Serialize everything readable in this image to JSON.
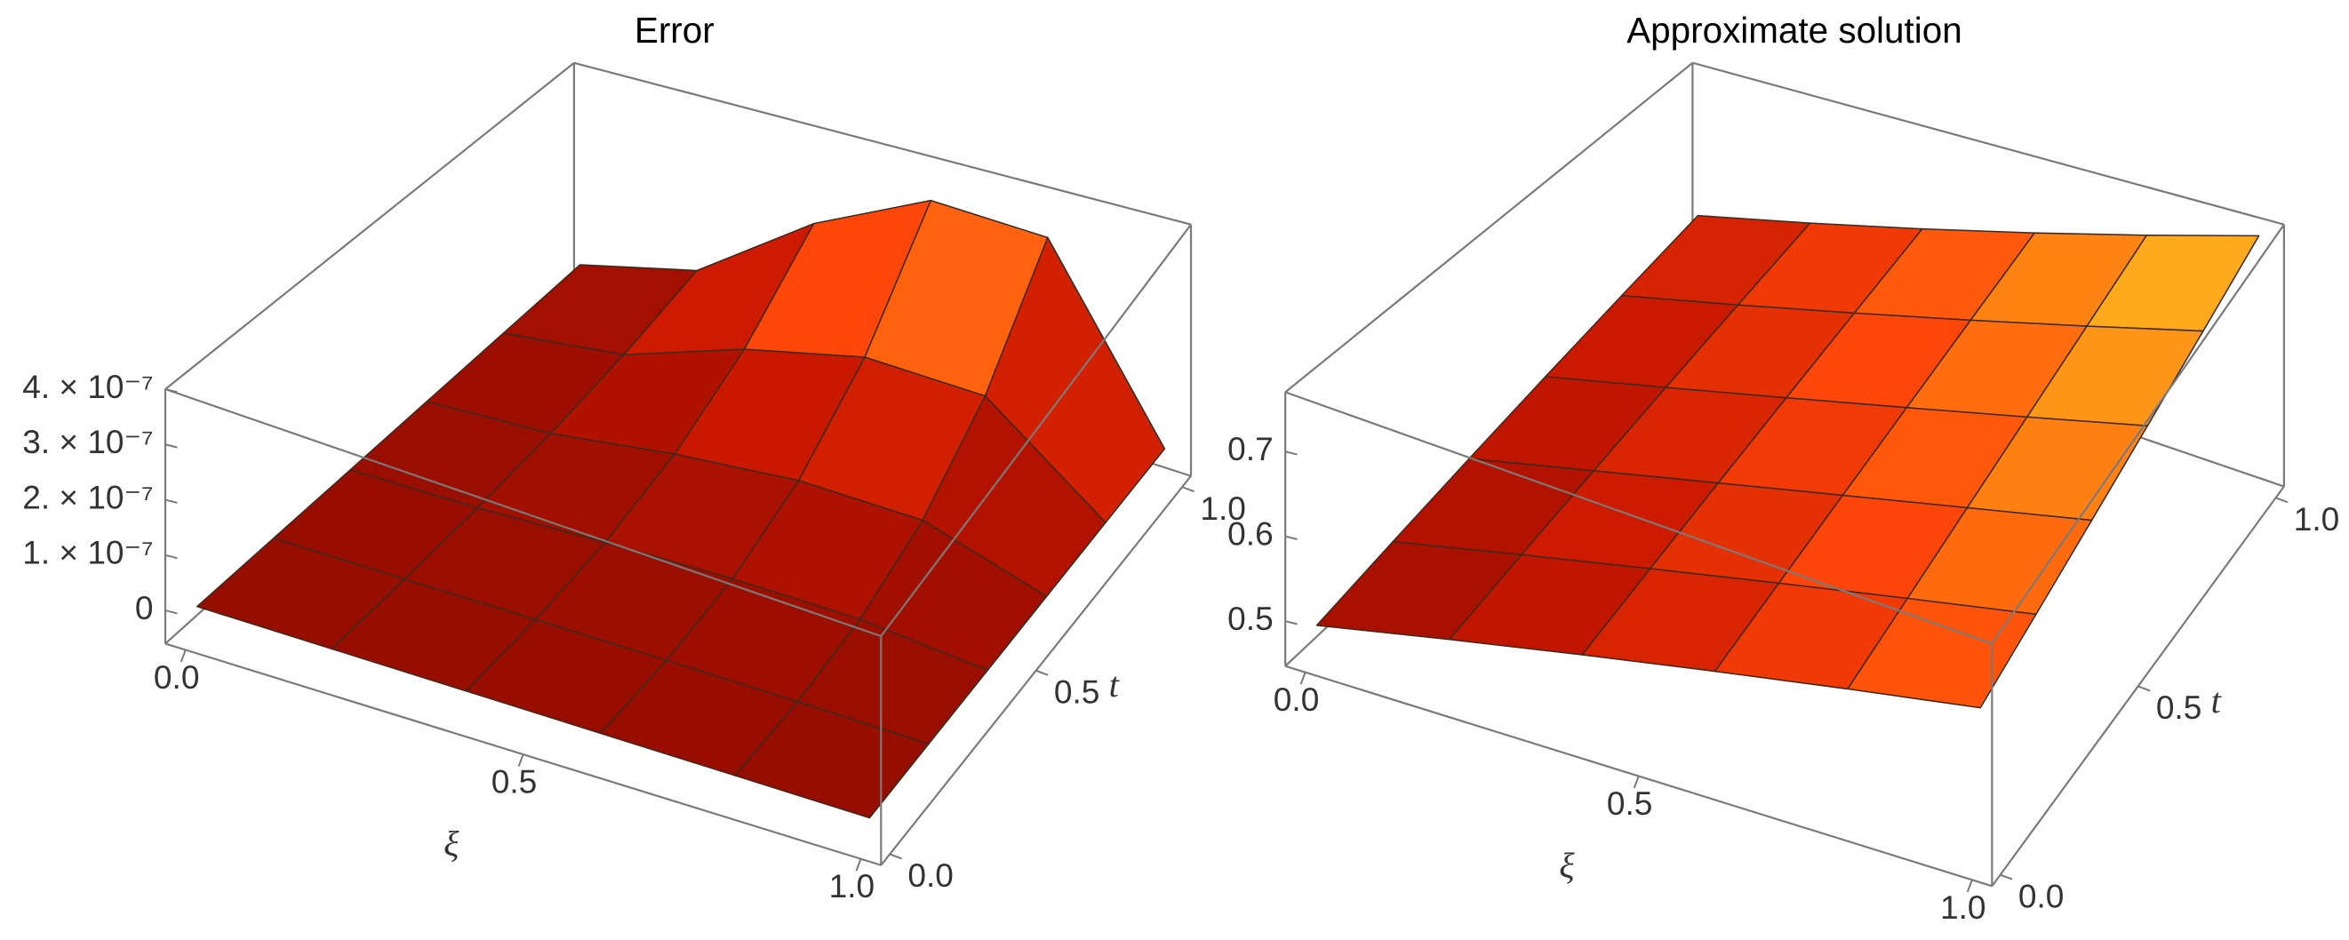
{
  "chart_data": [
    {
      "type": "surface",
      "title": "Error",
      "xlabel": "ξ",
      "ylabel": "t",
      "x": [
        0,
        0.2,
        0.4,
        0.6,
        0.8,
        1
      ],
      "y": [
        0,
        0.2,
        0.4,
        0.6,
        0.8,
        1
      ],
      "z": [
        [
          0,
          0,
          0,
          0,
          0,
          0
        ],
        [
          0,
          5e-10,
          1.8e-09,
          2.7e-09,
          2.6e-09,
          0
        ],
        [
          0,
          4.1e-09,
          1.47e-08,
          2.18e-08,
          2.11e-08,
          0
        ],
        [
          0,
          1.38e-08,
          4.97e-08,
          7.34e-08,
          7.13e-08,
          0
        ],
        [
          0,
          3.28e-08,
          1.18e-07,
          1.74e-07,
          1.69e-07,
          0
        ],
        [
          0,
          6.4e-08,
          2.3e-07,
          3.4e-07,
          3.3e-07,
          0
        ]
      ],
      "xlim": [
        -0.03,
        1.03
      ],
      "ylim": [
        -0.03,
        1.03
      ],
      "zlim": [
        -6e-08,
        4e-07
      ],
      "xticks": [
        {
          "value": 0,
          "label": "0.0"
        },
        {
          "value": 0.5,
          "label": "0.5"
        },
        {
          "value": 1,
          "label": "1.0"
        }
      ],
      "yticks": [
        {
          "value": 0,
          "label": "0.0"
        },
        {
          "value": 0.5,
          "label": "0.5"
        },
        {
          "value": 1,
          "label": "1.0"
        }
      ],
      "zticks": [
        0,
        {
          "value": 1e-07,
          "label": "1. × 10⁻⁷"
        },
        {
          "value": 2e-07,
          "label": "2. × 10⁻⁷"
        },
        {
          "value": 3e-07,
          "label": "3. × 10⁻⁷"
        },
        {
          "value": 4e-07,
          "label": "4. × 10⁻⁷"
        }
      ]
    },
    {
      "type": "surface",
      "title": "Approximate  solution",
      "xlabel": "ξ",
      "ylabel": "t",
      "x": [
        0,
        0.2,
        0.4,
        0.6,
        0.8,
        1
      ],
      "y": [
        0,
        0.2,
        0.4,
        0.6,
        0.8,
        1
      ],
      "z": [
        [
          0.49,
          0.524,
          0.558,
          0.592,
          0.626,
          0.66
        ],
        [
          0.506,
          0.541,
          0.576,
          0.611,
          0.646,
          0.681
        ],
        [
          0.522,
          0.558,
          0.594,
          0.63,
          0.666,
          0.702
        ],
        [
          0.538,
          0.575,
          0.612,
          0.649,
          0.686,
          0.723
        ],
        [
          0.554,
          0.592,
          0.63,
          0.668,
          0.706,
          0.744
        ],
        [
          0.57,
          0.609,
          0.648,
          0.687,
          0.726,
          0.765
        ]
      ],
      "xlim": [
        -0.03,
        1.03
      ],
      "ylim": [
        -0.03,
        1.03
      ],
      "zlim": [
        0.447,
        0.77
      ],
      "xticks": [
        {
          "value": 0,
          "label": "0.0"
        },
        {
          "value": 0.5,
          "label": "0.5"
        },
        {
          "value": 1,
          "label": "1.0"
        }
      ],
      "yticks": [
        {
          "value": 0,
          "label": "0.0"
        },
        {
          "value": 0.5,
          "label": "0.5"
        },
        {
          "value": 1,
          "label": "1.0"
        }
      ],
      "zticks": [
        0.5,
        0.6,
        0.7
      ]
    }
  ]
}
